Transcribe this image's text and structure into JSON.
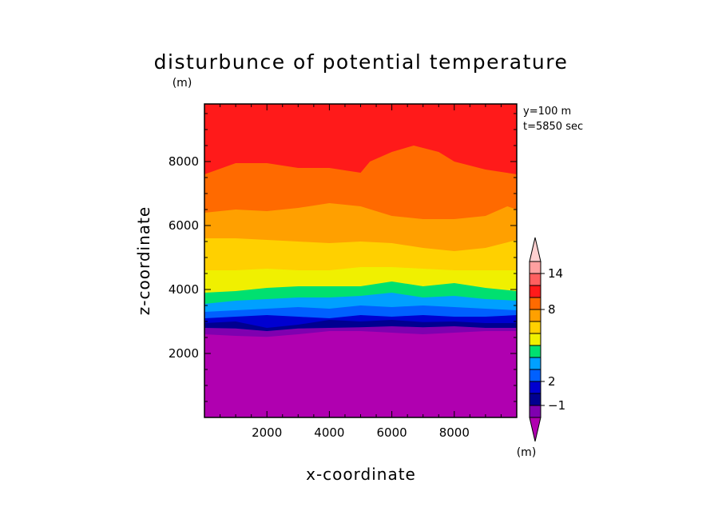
{
  "chart_data": {
    "type": "contour",
    "title": "disturbunce of potential temperature",
    "title_units": "(m)",
    "xlabel": "x-coordinate",
    "ylabel": "z-coordinate",
    "xlim": [
      0,
      10000
    ],
    "ylim": [
      0,
      9800
    ],
    "x_ticks": [
      2000,
      4000,
      6000,
      8000
    ],
    "y_ticks": [
      2000,
      4000,
      6000,
      8000
    ],
    "annotations": [
      "y=100 m",
      "t=5850 sec"
    ],
    "colorbar": {
      "units": "(m)",
      "labeled_ticks": [
        "14",
        "8",
        "2",
        "−1"
      ],
      "colors": [
        "#b000b0",
        "#7f00b0",
        "#000090",
        "#0000d0",
        "#0060ff",
        "#00a0ff",
        "#00e070",
        "#f0f000",
        "#ffd000",
        "#ffa000",
        "#ff6a00",
        "#ff1a1a",
        "#ff6060",
        "#ffa0a0",
        "#ffd0d0"
      ],
      "extends": "both"
    },
    "bands": [
      {
        "color": "#b000b0",
        "upper": [
          [
            0,
            2600
          ],
          [
            1000,
            2550
          ],
          [
            2000,
            2520
          ],
          [
            3000,
            2600
          ],
          [
            4000,
            2700
          ],
          [
            5000,
            2700
          ],
          [
            6000,
            2650
          ],
          [
            7000,
            2600
          ],
          [
            8000,
            2650
          ],
          [
            9000,
            2700
          ],
          [
            10000,
            2700
          ]
        ]
      },
      {
        "color": "#7f00b0",
        "upper": [
          [
            0,
            2800
          ],
          [
            1000,
            2780
          ],
          [
            2000,
            2700
          ],
          [
            3000,
            2780
          ],
          [
            4000,
            2800
          ],
          [
            5000,
            2820
          ],
          [
            6000,
            2850
          ],
          [
            7000,
            2820
          ],
          [
            8000,
            2850
          ],
          [
            9000,
            2800
          ],
          [
            10000,
            2800
          ]
        ]
      },
      {
        "color": "#000090",
        "upper": [
          [
            0,
            2950
          ],
          [
            1000,
            3000
          ],
          [
            2000,
            2800
          ],
          [
            3000,
            2900
          ],
          [
            4000,
            3050
          ],
          [
            5000,
            3000
          ],
          [
            6000,
            3050
          ],
          [
            7000,
            2980
          ],
          [
            8000,
            3000
          ],
          [
            9000,
            2950
          ],
          [
            10000,
            2950
          ]
        ]
      },
      {
        "color": "#0000d0",
        "upper": [
          [
            0,
            3100
          ],
          [
            1000,
            3150
          ],
          [
            2000,
            3200
          ],
          [
            3000,
            3150
          ],
          [
            4000,
            3100
          ],
          [
            5000,
            3200
          ],
          [
            6000,
            3150
          ],
          [
            7000,
            3200
          ],
          [
            8000,
            3150
          ],
          [
            9000,
            3150
          ],
          [
            10000,
            3200
          ]
        ]
      },
      {
        "color": "#0060ff",
        "upper": [
          [
            0,
            3300
          ],
          [
            1000,
            3350
          ],
          [
            2000,
            3400
          ],
          [
            3000,
            3450
          ],
          [
            4000,
            3400
          ],
          [
            5000,
            3500
          ],
          [
            6000,
            3450
          ],
          [
            7000,
            3500
          ],
          [
            8000,
            3450
          ],
          [
            9000,
            3400
          ],
          [
            10000,
            3350
          ]
        ]
      },
      {
        "color": "#00a0ff",
        "upper": [
          [
            0,
            3550
          ],
          [
            1000,
            3650
          ],
          [
            2000,
            3700
          ],
          [
            3000,
            3750
          ],
          [
            4000,
            3750
          ],
          [
            5000,
            3800
          ],
          [
            6000,
            3900
          ],
          [
            7000,
            3750
          ],
          [
            8000,
            3800
          ],
          [
            9000,
            3700
          ],
          [
            10000,
            3650
          ]
        ]
      },
      {
        "color": "#00e070",
        "upper": [
          [
            0,
            3900
          ],
          [
            1000,
            3950
          ],
          [
            2000,
            4050
          ],
          [
            3000,
            4100
          ],
          [
            4000,
            4100
          ],
          [
            5000,
            4100
          ],
          [
            6000,
            4250
          ],
          [
            7000,
            4100
          ],
          [
            8000,
            4200
          ],
          [
            9000,
            4050
          ],
          [
            10000,
            3950
          ]
        ]
      },
      {
        "color": "#f0f000",
        "upper": [
          [
            0,
            4600
          ],
          [
            1000,
            4600
          ],
          [
            2000,
            4650
          ],
          [
            3000,
            4600
          ],
          [
            4000,
            4600
          ],
          [
            5000,
            4700
          ],
          [
            6000,
            4700
          ],
          [
            7000,
            4650
          ],
          [
            8000,
            4600
          ],
          [
            9000,
            4600
          ],
          [
            10000,
            4600
          ]
        ]
      },
      {
        "color": "#ffd000",
        "upper": [
          [
            0,
            5600
          ],
          [
            1000,
            5600
          ],
          [
            2000,
            5550
          ],
          [
            3000,
            5500
          ],
          [
            4000,
            5450
          ],
          [
            5000,
            5500
          ],
          [
            6000,
            5450
          ],
          [
            7000,
            5300
          ],
          [
            8000,
            5200
          ],
          [
            9000,
            5300
          ],
          [
            10000,
            5550
          ]
        ]
      },
      {
        "color": "#ffa000",
        "upper": [
          [
            0,
            6400
          ],
          [
            1000,
            6500
          ],
          [
            2000,
            6450
          ],
          [
            3000,
            6550
          ],
          [
            4000,
            6700
          ],
          [
            5000,
            6600
          ],
          [
            6000,
            6300
          ],
          [
            7000,
            6200
          ],
          [
            8000,
            6200
          ],
          [
            9000,
            6300
          ],
          [
            9700,
            6600
          ],
          [
            10000,
            6500
          ]
        ]
      },
      {
        "color": "#ff6a00",
        "upper": [
          [
            0,
            7600
          ],
          [
            1000,
            7950
          ],
          [
            2000,
            7950
          ],
          [
            3000,
            7800
          ],
          [
            4000,
            7800
          ],
          [
            5000,
            7650
          ],
          [
            5300,
            8000
          ],
          [
            6000,
            8300
          ],
          [
            6700,
            8500
          ],
          [
            7500,
            8300
          ],
          [
            8000,
            8000
          ],
          [
            9000,
            7750
          ],
          [
            10000,
            7600
          ]
        ]
      },
      {
        "color": "#ff1a1a",
        "upper": [
          [
            0,
            9800
          ],
          [
            10000,
            9800
          ]
        ]
      }
    ]
  }
}
